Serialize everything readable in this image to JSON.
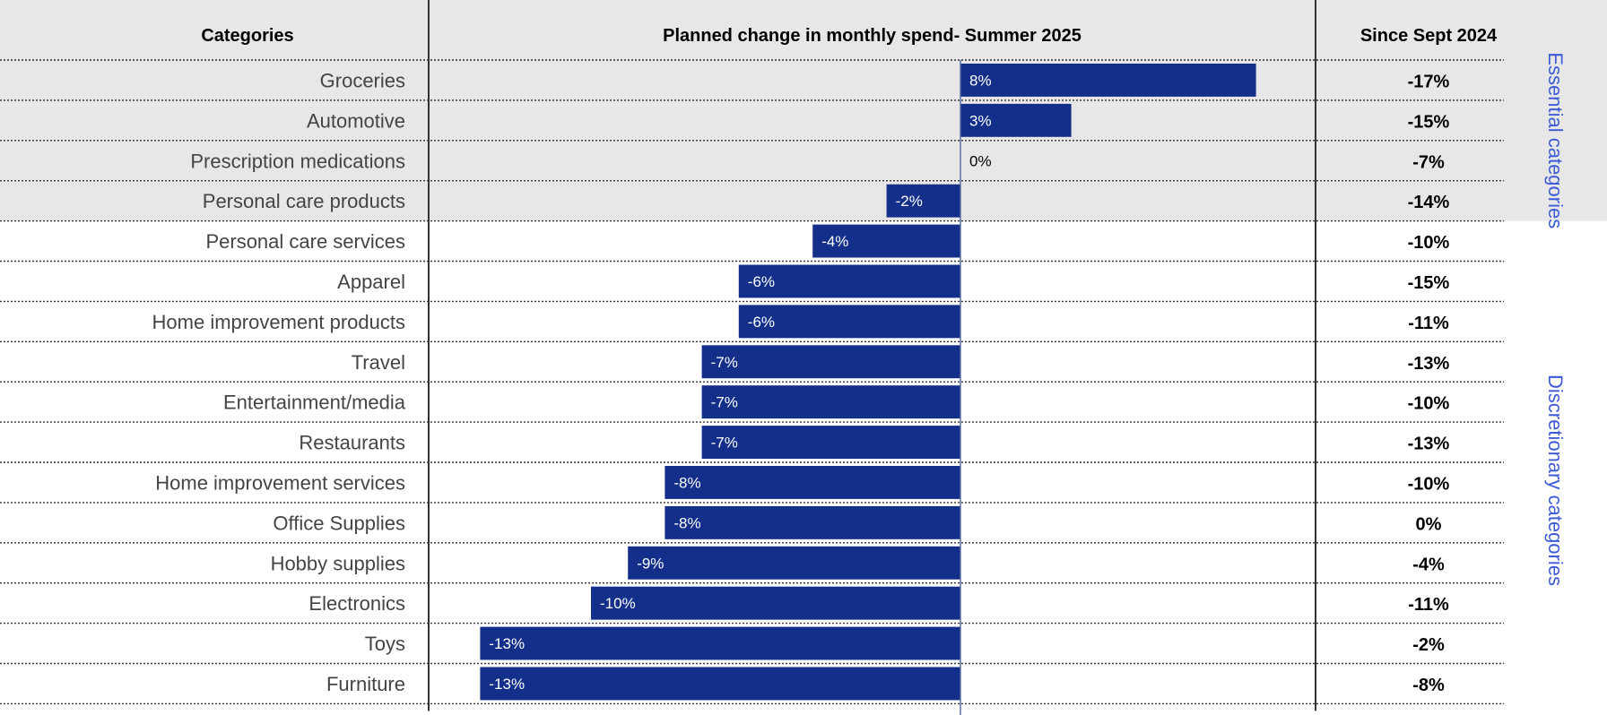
{
  "colors": {
    "bar": "#132f8a",
    "essential_bg": "#e7e7e7",
    "group_text": "#3d5bd6",
    "divider": "#333333"
  },
  "headers": {
    "categories": "Categories",
    "planned": "Planned change in monthly spend- Summer 2025",
    "since": "Since Sept 2024"
  },
  "groups": {
    "essential": "Essential categories",
    "discretionary": "Discretionary categories"
  },
  "chart_data": {
    "type": "bar",
    "orientation": "horizontal",
    "categories": [
      "Groceries",
      "Automotive",
      "Prescription medications",
      "Personal care products",
      "Personal care services",
      "Apparel",
      "Home improvement products",
      "Travel",
      "Entertainment/media",
      "Restaurants",
      "Home improvement services",
      "Office Supplies",
      "Hobby supplies",
      "Electronics",
      "Toys",
      "Furniture"
    ],
    "values": [
      8,
      3,
      0,
      -2,
      -4,
      -6,
      -6,
      -7,
      -7,
      -7,
      -8,
      -8,
      -9,
      -10,
      -13,
      -13
    ],
    "value_labels": [
      "8%",
      "3%",
      "0%",
      "-2%",
      "-4%",
      "-6%",
      "-6%",
      "-7%",
      "-7%",
      "-7%",
      "-8%",
      "-8%",
      "-9%",
      "-10%",
      "-13%",
      "-13%"
    ],
    "since_sept_2024": [
      "-17%",
      "-15%",
      "-7%",
      "-14%",
      "-10%",
      "-15%",
      "-11%",
      "-13%",
      "-10%",
      "-13%",
      "-10%",
      "0%",
      "-4%",
      "-11%",
      "-2%",
      "-8%"
    ],
    "essential_count": 4,
    "xlim": [
      -13.9,
      9.5
    ],
    "grid": false
  }
}
